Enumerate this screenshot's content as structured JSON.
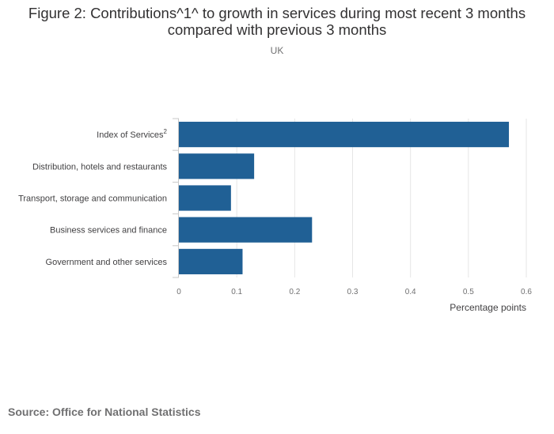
{
  "header": {
    "title": "Figure 2: Contributions^1^ to growth in services during most recent 3 months compared with previous 3 months",
    "subtitle": "UK"
  },
  "footer": {
    "source_label": "Source:",
    "source_text": "Office for National Statistics"
  },
  "colors": {
    "bar": "#206095",
    "grid": "#e6e6e6",
    "axis": "#c8c8c8",
    "text": "#414042"
  },
  "chart_data": {
    "type": "bar",
    "orientation": "horizontal",
    "categories": [
      "Index of Services",
      "Distribution, hotels and restaurants",
      "Transport, storage and communication",
      "Business services and finance",
      "Government and other services"
    ],
    "category_superscripts": [
      "2",
      "",
      "",
      "",
      ""
    ],
    "values": [
      0.57,
      0.13,
      0.09,
      0.23,
      0.11
    ],
    "xlabel": "Percentage points",
    "ylabel": "",
    "xlim": [
      0,
      0.6
    ],
    "xticks": [
      "0",
      "0.1",
      "0.2",
      "0.3",
      "0.4",
      "0.5",
      "0.6"
    ],
    "grid": true,
    "legend": "none"
  }
}
